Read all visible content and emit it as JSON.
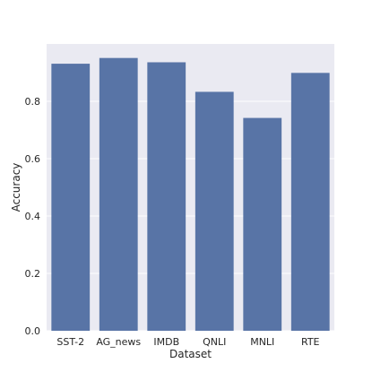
{
  "chart_data": {
    "type": "bar",
    "title": "",
    "xlabel": "Dataset",
    "ylabel": "Accuracy",
    "categories": [
      "SST-2",
      "AG_news",
      "IMDB",
      "QNLI",
      "MNLI",
      "RTE"
    ],
    "values": [
      0.931,
      0.951,
      0.936,
      0.833,
      0.742,
      0.899
    ],
    "ylim": [
      0,
      1.0
    ],
    "yticks": [
      0.0,
      0.2,
      0.4,
      0.6,
      0.8
    ],
    "ytick_labels": [
      "0.0",
      "0.2",
      "0.4",
      "0.6",
      "0.8"
    ],
    "grid": true,
    "legend": "none"
  },
  "colors": {
    "bar": "#5874a6",
    "plot_background": "#eaeaf2",
    "grid": "#ffffff",
    "text": "#262626"
  }
}
